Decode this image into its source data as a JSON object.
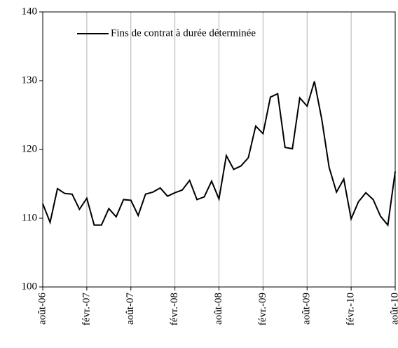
{
  "chart_data": {
    "type": "line",
    "categories": [
      "août-06",
      null,
      null,
      null,
      null,
      null,
      "févr.-07",
      null,
      null,
      null,
      null,
      null,
      "août-07",
      null,
      null,
      null,
      null,
      null,
      "févr.-08",
      null,
      null,
      null,
      null,
      null,
      "août-08",
      null,
      null,
      null,
      null,
      null,
      "févr.-09",
      null,
      null,
      null,
      null,
      null,
      "août-09",
      null,
      null,
      null,
      null,
      null,
      "févr.-10",
      null,
      null,
      null,
      null,
      null,
      "août-10"
    ],
    "series": [
      {
        "name": "Fins de contrat à durée déterminée",
        "color": "#000000",
        "values": [
          112.1,
          109.4,
          114.3,
          113.6,
          113.5,
          111.3,
          112.9,
          109.0,
          109.0,
          111.4,
          110.2,
          112.7,
          112.6,
          110.4,
          113.5,
          113.8,
          114.4,
          113.2,
          113.7,
          114.1,
          115.5,
          112.7,
          113.1,
          115.4,
          112.8,
          119.1,
          117.1,
          117.6,
          118.8,
          123.4,
          122.3,
          127.6,
          128.1,
          120.3,
          120.1,
          127.5,
          126.3,
          129.9,
          124.4,
          117.4,
          113.8,
          115.7,
          109.9,
          112.4,
          113.7,
          112.7,
          110.3,
          109.0,
          116.8
        ]
      }
    ],
    "ylim": [
      100,
      140
    ],
    "yticks": [
      100,
      110,
      120,
      130,
      140
    ],
    "grid": "x",
    "legend": "top-left"
  }
}
